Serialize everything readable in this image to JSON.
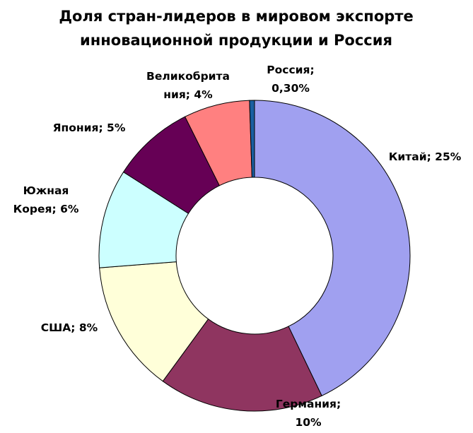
{
  "chart_data": {
    "type": "pie",
    "title_lines": [
      "Доля стран-лидеров в мировом экспорте",
      "инновационной продукции и Россия"
    ],
    "donut": true,
    "slices": [
      {
        "name": "Китай",
        "value": 25,
        "color": "#a0a0f0",
        "label_lines": [
          "Китай; 25%"
        ]
      },
      {
        "name": "Германия",
        "value": 10,
        "color": "#8f3560",
        "label_lines": [
          "Германия;",
          "10%"
        ]
      },
      {
        "name": "США",
        "value": 8,
        "color": "#ffffd9",
        "label_lines": [
          "США; 8%"
        ]
      },
      {
        "name": "Южная Корея",
        "value": 6,
        "color": "#ccffff",
        "label_lines": [
          "Южная",
          "Корея; 6%"
        ]
      },
      {
        "name": "Япония",
        "value": 5,
        "color": "#660055",
        "label_lines": [
          "Япония; 5%"
        ]
      },
      {
        "name": "Великобритания",
        "value": 4,
        "color": "#ff8080",
        "label_lines": [
          "Великобрита",
          "ния; 4%"
        ]
      },
      {
        "name": "Россия",
        "value": 0.3,
        "color": "#1a5fa0",
        "label_lines": [
          "Россия;",
          "0,30%"
        ]
      }
    ]
  }
}
